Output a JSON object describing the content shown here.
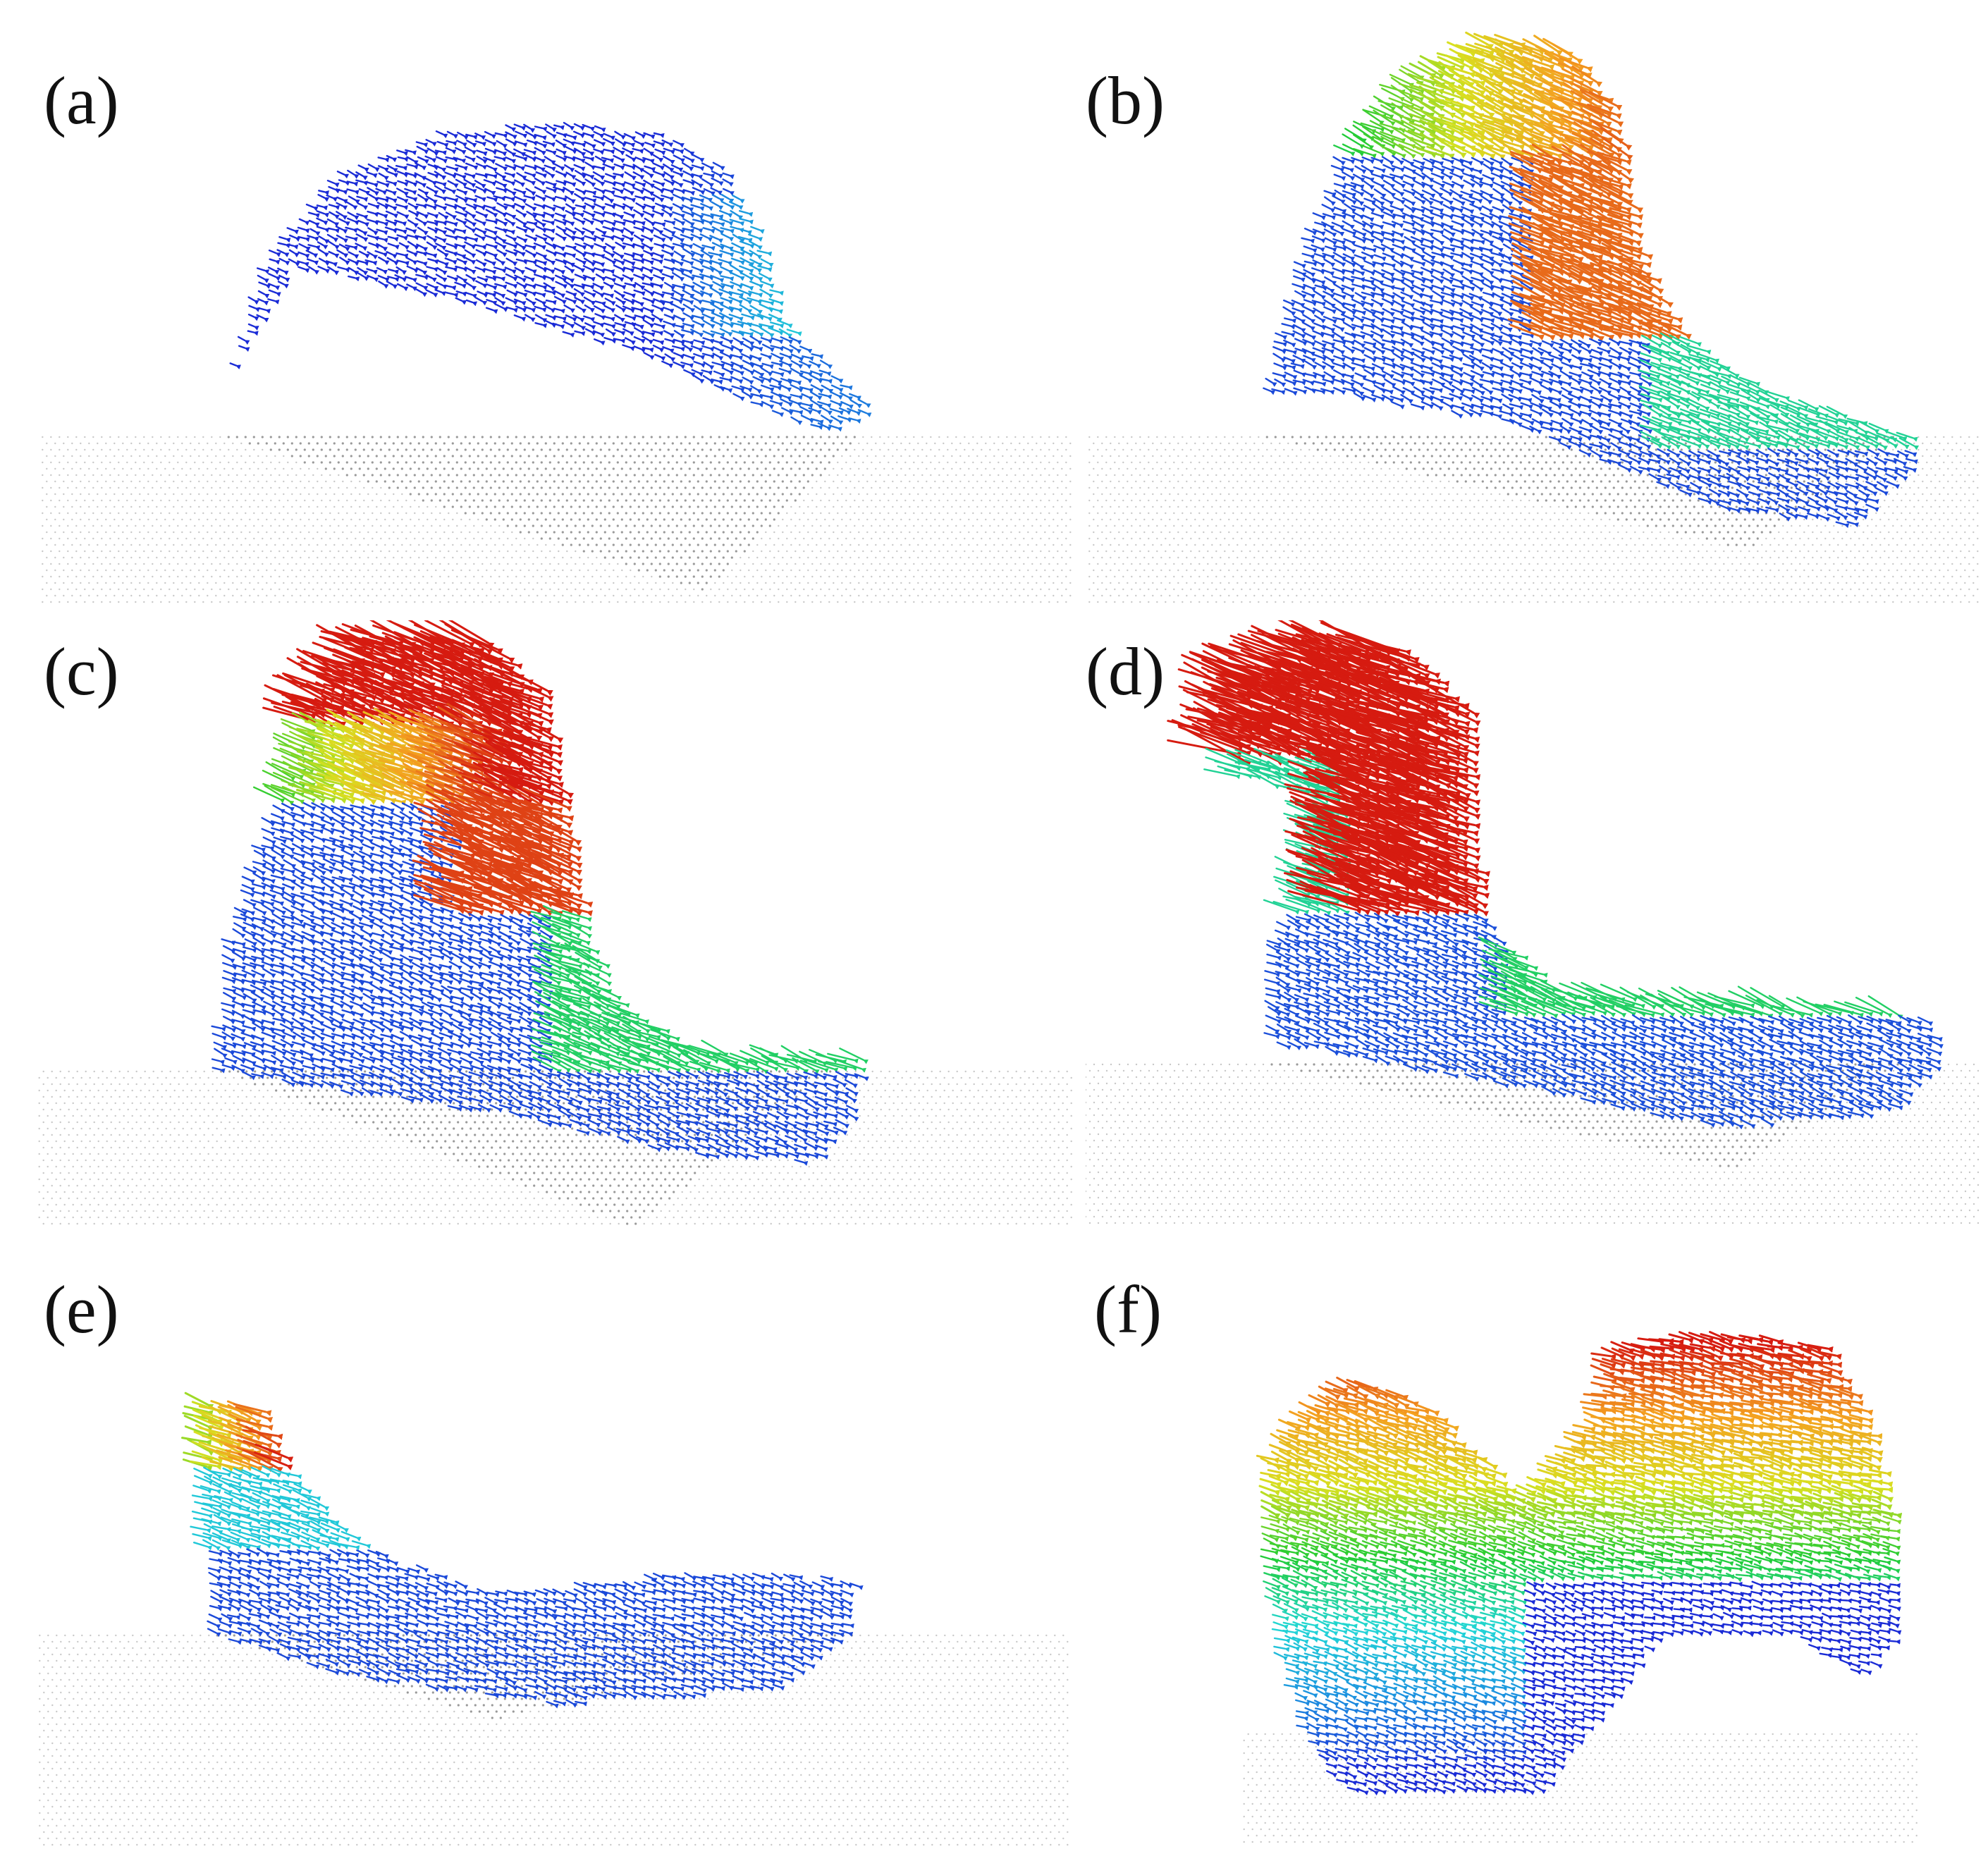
{
  "figure": {
    "panels": [
      {
        "id": "a",
        "label": "(a)"
      },
      {
        "id": "b",
        "label": "(b)"
      },
      {
        "id": "c",
        "label": "(c)"
      },
      {
        "id": "d",
        "label": "(d)"
      },
      {
        "id": "e",
        "label": "(e)"
      },
      {
        "id": "f",
        "label": "(f)"
      }
    ],
    "colors": {
      "substrate": "#9a9a9a",
      "substrate_light": "#c8c8c8",
      "low_velocity": "#2233cc",
      "colormap": [
        "#1a2bd6",
        "#1c8fe0",
        "#22d6d6",
        "#22cc33",
        "#d8e020",
        "#f4a020",
        "#d61a10"
      ]
    }
  }
}
